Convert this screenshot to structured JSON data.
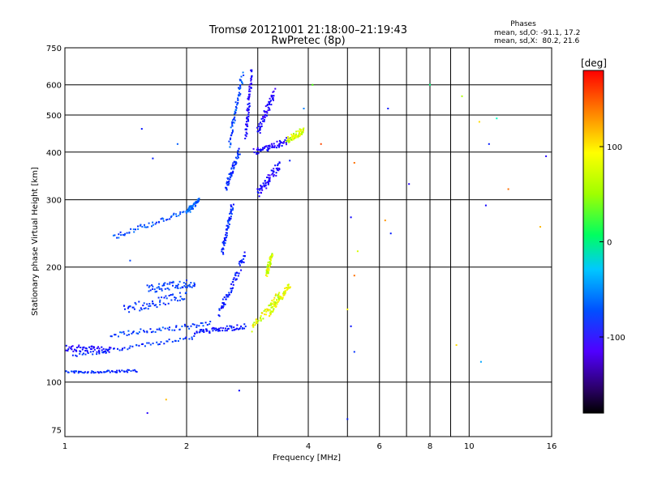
{
  "chart_data": {
    "type": "scatter",
    "title": "Tromsø 20121001 21:18:00–21:19:43",
    "subtitle": "RwPretec (8p)",
    "stats": {
      "heading": "Phases",
      "line_o": "mean, sd,O: -91.1, 17.2",
      "line_x": "mean, sd,X:  80.2, 21.6"
    },
    "xlabel": "Frequency [MHz]",
    "ylabel": "Stationary phase Virtual Height [km]",
    "x_scale": "log",
    "y_scale": "log",
    "xlim": [
      1,
      16
    ],
    "ylim": [
      72,
      750
    ],
    "x_ticks": [
      1,
      2,
      4,
      6,
      8,
      10,
      16
    ],
    "x_tick_labels": [
      "1",
      "2",
      "4",
      "6",
      "8",
      "10",
      "16"
    ],
    "x_minor_ticks": [
      3,
      5,
      7,
      9
    ],
    "y_ticks": [
      75,
      100,
      200,
      300,
      400,
      500,
      600,
      750
    ],
    "y_tick_labels": [
      "75",
      "100",
      "200",
      "300",
      "400",
      "500",
      "600",
      "750"
    ],
    "grid": true,
    "colorbar": {
      "label": "[deg]",
      "range": [
        -180,
        180
      ],
      "ticks": [
        100,
        0,
        -100
      ],
      "tick_labels": [
        "100",
        "0",
        "-100"
      ]
    },
    "traces": [
      {
        "x_start": 1.0,
        "x_end": 1.5,
        "h_start": 106,
        "h_end": 107,
        "phase": -95,
        "spread": 1.5
      },
      {
        "x_start": 1.0,
        "x_end": 1.3,
        "h_start": 123,
        "h_end": 121,
        "phase": -120,
        "spread": 4
      },
      {
        "x_start": 1.05,
        "x_end": 2.1,
        "h_start": 117,
        "h_end": 131,
        "phase": -90,
        "spread": 2
      },
      {
        "x_start": 1.3,
        "x_end": 2.3,
        "h_start": 133,
        "h_end": 142,
        "phase": -85,
        "spread": 3
      },
      {
        "x_start": 1.4,
        "x_end": 2.0,
        "h_start": 155,
        "h_end": 168,
        "phase": -90,
        "spread": 6
      },
      {
        "x_start": 1.6,
        "x_end": 2.1,
        "h_start": 175,
        "h_end": 182,
        "phase": -85,
        "spread": 5
      },
      {
        "x_start": 2.1,
        "x_end": 2.8,
        "h_start": 135,
        "h_end": 140,
        "phase": -110,
        "spread": 3
      },
      {
        "x_start": 2.4,
        "x_end": 2.8,
        "h_start": 150,
        "h_end": 215,
        "phase": -105,
        "spread": 6
      },
      {
        "x_start": 2.45,
        "x_end": 2.6,
        "h_start": 220,
        "h_end": 290,
        "phase": -95,
        "spread": 4
      },
      {
        "x_start": 1.32,
        "x_end": 2.1,
        "h_start": 240,
        "h_end": 285,
        "phase": -80,
        "spread": 3
      },
      {
        "x_start": 2.0,
        "x_end": 2.15,
        "h_start": 280,
        "h_end": 300,
        "phase": -70,
        "spread": 2
      },
      {
        "x_start": 2.5,
        "x_end": 2.7,
        "h_start": 320,
        "h_end": 400,
        "phase": -95,
        "spread": 5
      },
      {
        "x_start": 2.55,
        "x_end": 2.75,
        "h_start": 420,
        "h_end": 640,
        "phase": -80,
        "spread": 5
      },
      {
        "x_start": 2.8,
        "x_end": 2.9,
        "h_start": 440,
        "h_end": 650,
        "phase": -125,
        "spread": 3
      },
      {
        "x_start": 2.95,
        "x_end": 3.6,
        "h_start": 400,
        "h_end": 430,
        "phase": -125,
        "spread": 4
      },
      {
        "x_start": 3.0,
        "x_end": 3.3,
        "h_start": 450,
        "h_end": 580,
        "phase": -125,
        "spread": 7
      },
      {
        "x_start": 3.0,
        "x_end": 3.4,
        "h_start": 310,
        "h_end": 370,
        "phase": -125,
        "spread": 6
      },
      {
        "x_start": 3.55,
        "x_end": 3.9,
        "h_start": 430,
        "h_end": 455,
        "phase": 100,
        "spread": 4
      },
      {
        "x_start": 2.9,
        "x_end": 3.4,
        "h_start": 138,
        "h_end": 170,
        "phase": 105,
        "spread": 4
      },
      {
        "x_start": 3.2,
        "x_end": 3.6,
        "h_start": 150,
        "h_end": 180,
        "phase": 105,
        "spread": 3
      },
      {
        "x_start": 3.15,
        "x_end": 3.25,
        "h_start": 190,
        "h_end": 215,
        "phase": 100,
        "spread": 3
      }
    ],
    "sparse_points": [
      {
        "x": 4.1,
        "h": 600,
        "phase": 60
      },
      {
        "x": 4.3,
        "h": 420,
        "phase": 160
      },
      {
        "x": 5.2,
        "h": 375,
        "phase": 150
      },
      {
        "x": 5.1,
        "h": 270,
        "phase": -120
      },
      {
        "x": 5.3,
        "h": 220,
        "phase": 100
      },
      {
        "x": 5.2,
        "h": 190,
        "phase": 150
      },
      {
        "x": 5.0,
        "h": 155,
        "phase": 110
      },
      {
        "x": 5.1,
        "h": 140,
        "phase": -110
      },
      {
        "x": 5.2,
        "h": 120,
        "phase": -90
      },
      {
        "x": 5.0,
        "h": 80,
        "phase": -100
      },
      {
        "x": 6.3,
        "h": 520,
        "phase": -105
      },
      {
        "x": 6.2,
        "h": 265,
        "phase": 140
      },
      {
        "x": 6.4,
        "h": 245,
        "phase": -100
      },
      {
        "x": 7.1,
        "h": 330,
        "phase": -130
      },
      {
        "x": 8.0,
        "h": 600,
        "phase": 10
      },
      {
        "x": 9.3,
        "h": 125,
        "phase": 120
      },
      {
        "x": 9.6,
        "h": 560,
        "phase": 90
      },
      {
        "x": 10.6,
        "h": 480,
        "phase": 120
      },
      {
        "x": 11.0,
        "h": 290,
        "phase": -120
      },
      {
        "x": 11.2,
        "h": 420,
        "phase": -100
      },
      {
        "x": 11.7,
        "h": 490,
        "phase": -10
      },
      {
        "x": 12.5,
        "h": 320,
        "phase": 150
      },
      {
        "x": 15.5,
        "h": 390,
        "phase": -130
      },
      {
        "x": 15.0,
        "h": 255,
        "phase": 130
      },
      {
        "x": 10.7,
        "h": 113,
        "phase": -50
      },
      {
        "x": 1.65,
        "h": 385,
        "phase": -100
      },
      {
        "x": 1.55,
        "h": 460,
        "phase": -105
      },
      {
        "x": 1.6,
        "h": 83,
        "phase": -130
      },
      {
        "x": 1.78,
        "h": 90,
        "phase": 130
      },
      {
        "x": 2.7,
        "h": 95,
        "phase": -115
      },
      {
        "x": 1.9,
        "h": 420,
        "phase": -70
      },
      {
        "x": 1.45,
        "h": 208,
        "phase": -80
      },
      {
        "x": 3.6,
        "h": 380,
        "phase": -100
      },
      {
        "x": 3.9,
        "h": 520,
        "phase": -60
      }
    ]
  }
}
